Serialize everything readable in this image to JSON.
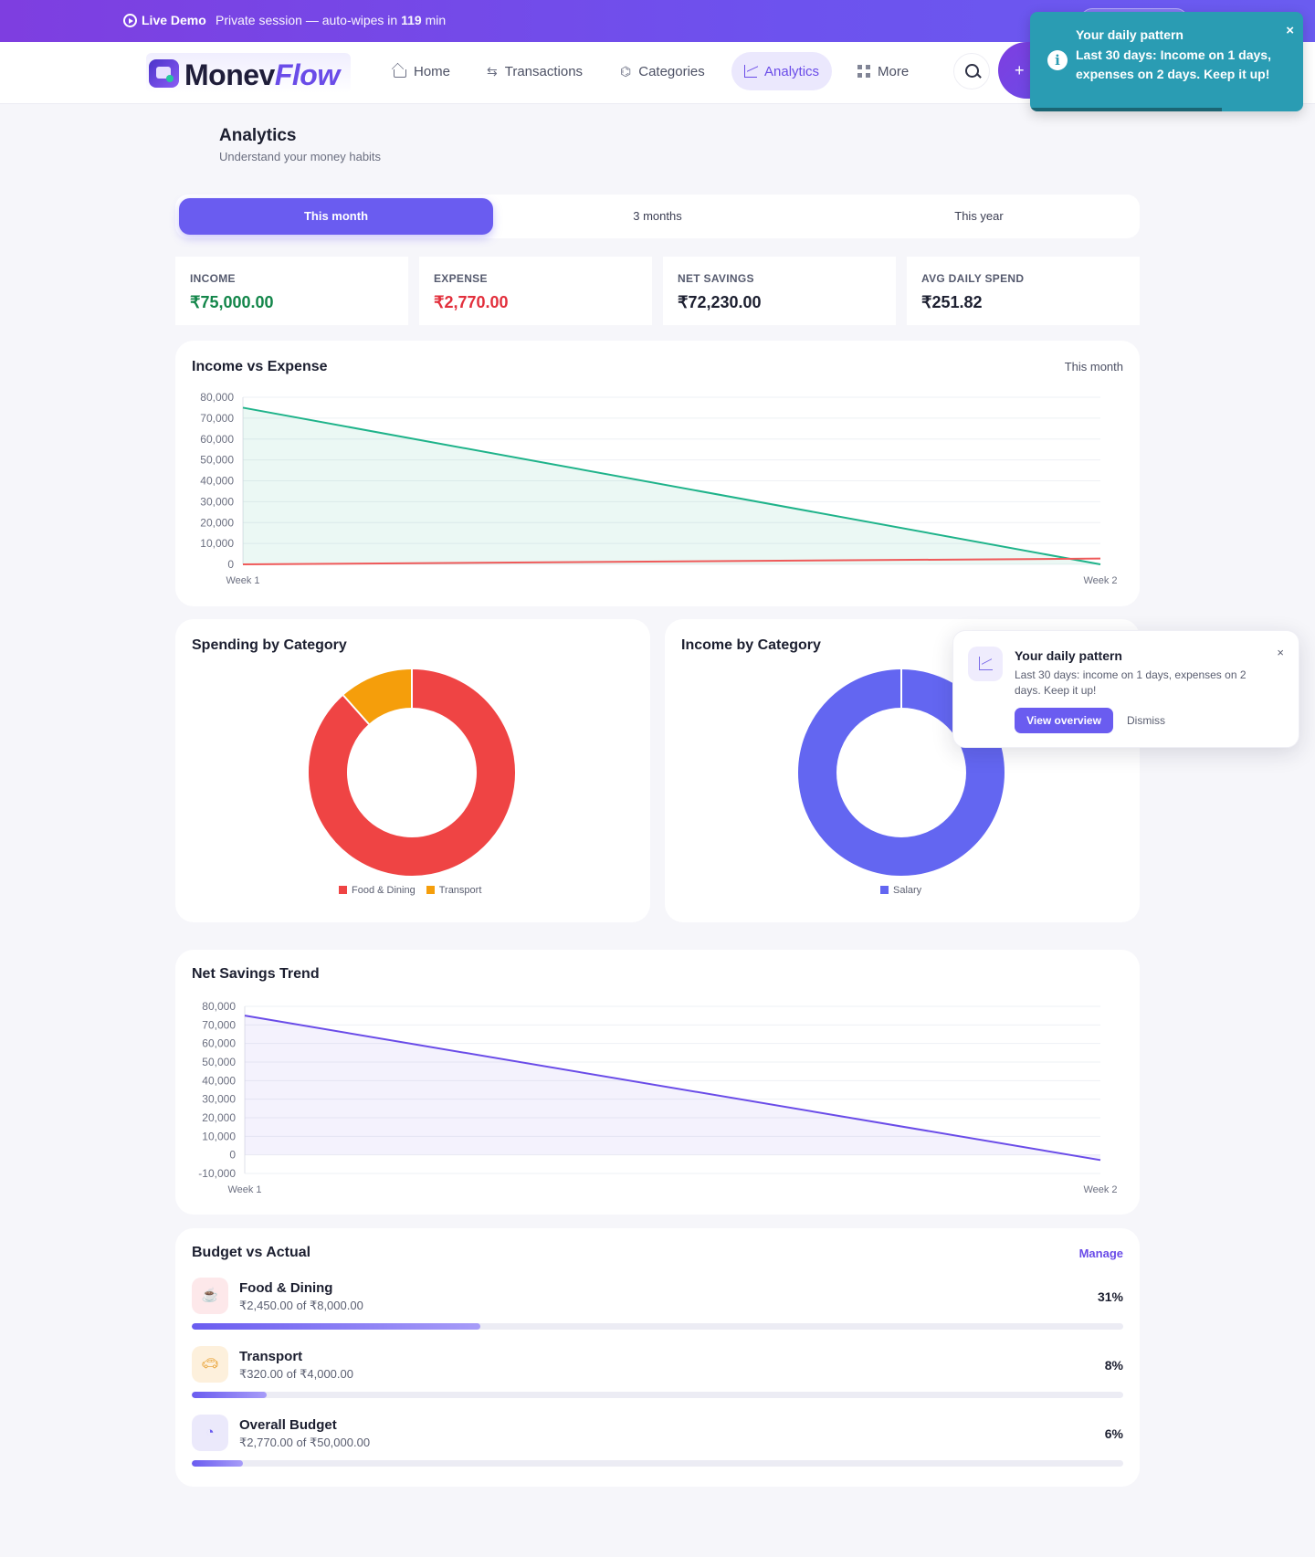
{
  "topbar": {
    "demo_label": "Live Demo",
    "session_text": "Private session — auto-wipes in",
    "session_minutes": "119",
    "session_unit": "min"
  },
  "brand": {
    "name_part1": "Monev",
    "name_part2": "Flow"
  },
  "nav": {
    "items": [
      {
        "label": "Home",
        "icon": "home-icon"
      },
      {
        "label": "Transactions",
        "icon": "arrows-icon"
      },
      {
        "label": "Categories",
        "icon": "tag-icon"
      },
      {
        "label": "Analytics",
        "icon": "chart-icon"
      },
      {
        "label": "More",
        "icon": "grid-icon"
      }
    ],
    "active": "Analytics",
    "add_symbol": "+"
  },
  "toast": {
    "title": "Your daily pattern",
    "message": "Last 30 days: Income on 1 days, expenses on 2 days. Keep it up!",
    "close_symbol": "×",
    "info_symbol": "i"
  },
  "page": {
    "title": "Analytics",
    "subtitle": "Understand your money habits"
  },
  "periods": {
    "options": [
      "This month",
      "3 months",
      "This year"
    ],
    "selected": "This month"
  },
  "stats": [
    {
      "label": "INCOME",
      "value": "₹75,000.00",
      "color": "#13864a"
    },
    {
      "label": "EXPENSE",
      "value": "₹2,770.00",
      "color": "#e22f3c"
    },
    {
      "label": "NET SAVINGS",
      "value": "₹72,230.00",
      "color": "#1c1f30"
    },
    {
      "label": "AVG DAILY SPEND",
      "value": "₹251.82",
      "color": "#1c1f30"
    }
  ],
  "income_expense": {
    "title": "Income vs Expense",
    "period_label": "This month"
  },
  "spending": {
    "title": "Spending by Category"
  },
  "income_cat": {
    "title": "Income by Category"
  },
  "net_trend": {
    "title": "Net Savings Trend"
  },
  "popup": {
    "title": "Your daily pattern",
    "message": "Last 30 days: income on 1 days, expenses on 2 days. Keep it up!",
    "view_label": "View overview",
    "dismiss_label": "Dismiss",
    "close_symbol": "×"
  },
  "budget": {
    "title": "Budget vs Actual",
    "manage_label": "Manage",
    "rows": [
      {
        "name": "Food & Dining",
        "amount": "₹2,450.00 of ₹8,000.00",
        "percent_label": "31%",
        "fraction": 0.31,
        "icon": "coffee-icon",
        "bg": "#fde8ea",
        "fg": "#e24b57"
      },
      {
        "name": "Transport",
        "amount": "₹320.00 of ₹4,000.00",
        "percent_label": "8%",
        "fraction": 0.08,
        "icon": "car-icon",
        "bg": "#fdf0dc",
        "fg": "#e79a23"
      },
      {
        "name": "Overall Budget",
        "amount": "₹2,770.00 of ₹50,000.00",
        "percent_label": "6%",
        "fraction": 0.055,
        "icon": "pie-icon",
        "bg": "#ebe9fb",
        "fg": "#6a5cf0"
      }
    ]
  },
  "chart_data": [
    {
      "type": "area",
      "title": "Income vs Expense",
      "categories": [
        "Week 1",
        "Week 2"
      ],
      "yticks": [
        "0",
        "10,000",
        "20,000",
        "30,000",
        "40,000",
        "50,000",
        "60,000",
        "70,000",
        "80,000"
      ],
      "ylim": [
        0,
        80000
      ],
      "series": [
        {
          "values": [
            75000,
            0
          ],
          "color": "#1fb38a"
        },
        {
          "values": [
            0,
            2770
          ],
          "color": "#ef5a5a"
        }
      ],
      "grid": true
    },
    {
      "type": "pie",
      "title": "Spending by Category",
      "labels": [
        "Food & Dining",
        "Transport"
      ],
      "values": [
        2450,
        320
      ],
      "colors": [
        "#ef4444",
        "#f59e0b"
      ],
      "legend": "bottom"
    },
    {
      "type": "pie",
      "title": "Income by Category",
      "labels": [
        "Salary"
      ],
      "values": [
        75000
      ],
      "colors": [
        "#6366f1"
      ],
      "legend": "bottom"
    },
    {
      "type": "area",
      "title": "Net Savings Trend",
      "categories": [
        "Week 1",
        "Week 2"
      ],
      "yticks": [
        "-10,000",
        "0",
        "10,000",
        "20,000",
        "30,000",
        "40,000",
        "50,000",
        "60,000",
        "70,000",
        "80,000"
      ],
      "ylim": [
        -10000,
        80000
      ],
      "series": [
        {
          "values": [
            75000,
            -2770
          ],
          "color": "#6a4ce8"
        }
      ],
      "grid": true
    }
  ]
}
